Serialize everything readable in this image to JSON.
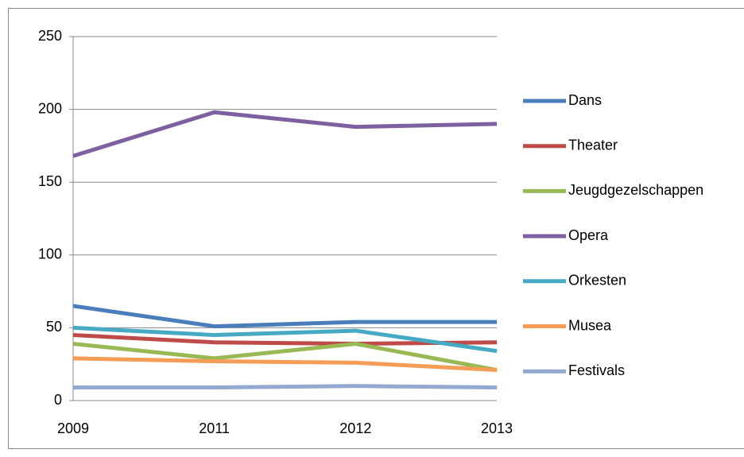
{
  "chart_data": {
    "type": "line",
    "categories": [
      "2009",
      "2011",
      "2012",
      "2013"
    ],
    "series": [
      {
        "name": "Dans",
        "color": "#4a7ebb",
        "values": [
          65,
          51,
          54,
          54
        ]
      },
      {
        "name": "Theater",
        "color": "#be4b48",
        "values": [
          45,
          40,
          39,
          40
        ]
      },
      {
        "name": "Jeugdgezelschappen",
        "color": "#98b954",
        "values": [
          39,
          29,
          39,
          21
        ]
      },
      {
        "name": "Opera",
        "color": "#7d60a0",
        "values": [
          168,
          198,
          188,
          190
        ]
      },
      {
        "name": "Orkesten",
        "color": "#46aac5",
        "values": [
          50,
          45,
          48,
          34
        ]
      },
      {
        "name": "Musea",
        "color": "#f59d56",
        "values": [
          29,
          27,
          26,
          21
        ]
      },
      {
        "name": "Festivals",
        "color": "#93a9cf",
        "values": [
          9,
          9,
          10,
          9
        ]
      }
    ],
    "ylim": [
      0,
      250
    ],
    "yticks": [
      0,
      50,
      100,
      150,
      200,
      250
    ],
    "grid": true,
    "legend": "right"
  }
}
